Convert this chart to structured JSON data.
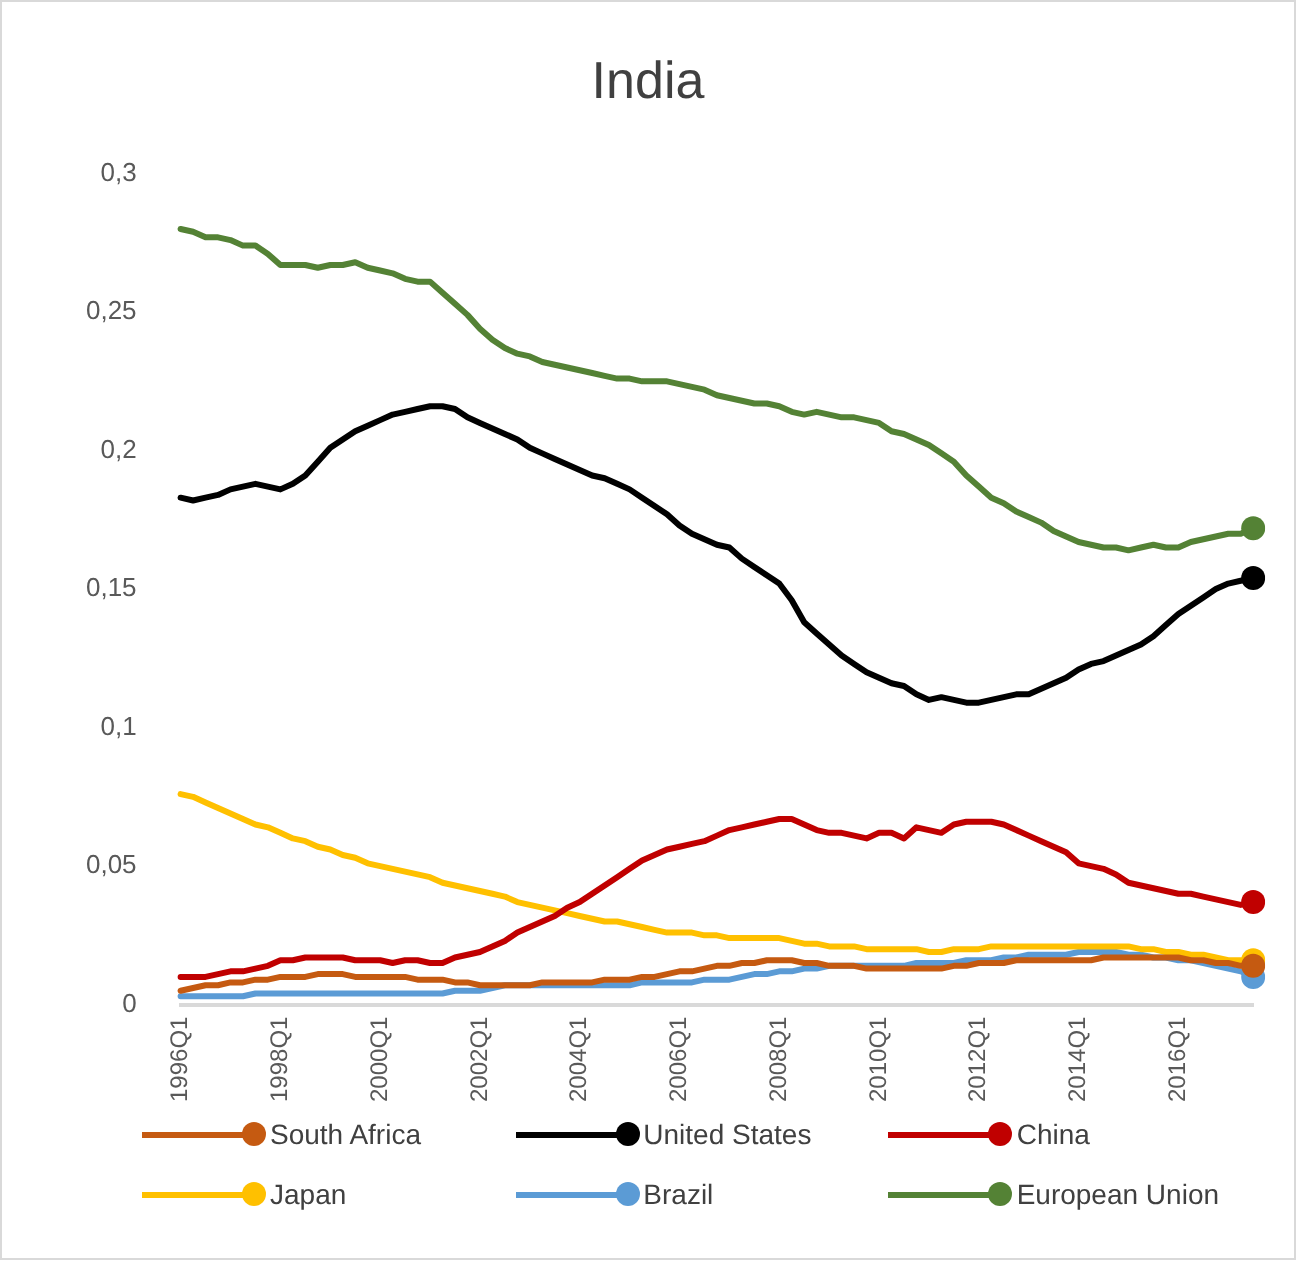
{
  "chart_data": {
    "type": "line",
    "title": "India",
    "categories": [
      "1996Q1",
      null,
      null,
      null,
      null,
      null,
      null,
      null,
      "1998Q1",
      null,
      null,
      null,
      null,
      null,
      null,
      null,
      "2000Q1",
      null,
      null,
      null,
      null,
      null,
      null,
      null,
      "2002Q1",
      null,
      null,
      null,
      null,
      null,
      null,
      null,
      "2004Q1",
      null,
      null,
      null,
      null,
      null,
      null,
      null,
      "2006Q1",
      null,
      null,
      null,
      null,
      null,
      null,
      null,
      "2008Q1",
      null,
      null,
      null,
      null,
      null,
      null,
      null,
      "2010Q1",
      null,
      null,
      null,
      null,
      null,
      null,
      null,
      "2012Q1",
      null,
      null,
      null,
      null,
      null,
      null,
      null,
      "2014Q1",
      null,
      null,
      null,
      null,
      null,
      null,
      null,
      "2016Q1",
      null,
      null,
      null,
      null,
      null,
      null
    ],
    "series": [
      {
        "name": "South Africa",
        "color": "#c55a11",
        "values": [
          0.005,
          0.006,
          0.007,
          0.007,
          0.008,
          0.008,
          0.009,
          0.009,
          0.01,
          0.01,
          0.01,
          0.011,
          0.011,
          0.011,
          0.01,
          0.01,
          0.01,
          0.01,
          0.01,
          0.009,
          0.009,
          0.009,
          0.008,
          0.008,
          0.007,
          0.007,
          0.007,
          0.007,
          0.007,
          0.008,
          0.008,
          0.008,
          0.008,
          0.008,
          0.009,
          0.009,
          0.009,
          0.01,
          0.01,
          0.011,
          0.012,
          0.012,
          0.013,
          0.014,
          0.014,
          0.015,
          0.015,
          0.016,
          0.016,
          0.016,
          0.015,
          0.015,
          0.014,
          0.014,
          0.014,
          0.013,
          0.013,
          0.013,
          0.013,
          0.013,
          0.013,
          0.013,
          0.014,
          0.014,
          0.015,
          0.015,
          0.015,
          0.016,
          0.016,
          0.016,
          0.016,
          0.016,
          0.016,
          0.016,
          0.017,
          0.017,
          0.017,
          0.017,
          0.017,
          0.017,
          0.017,
          0.016,
          0.016,
          0.015,
          0.015,
          0.014,
          0.014
        ]
      },
      {
        "name": "United States",
        "color": "#000000",
        "values": [
          0.183,
          0.182,
          0.183,
          0.184,
          0.186,
          0.187,
          0.188,
          0.187,
          0.186,
          0.188,
          0.191,
          0.196,
          0.201,
          0.204,
          0.207,
          0.209,
          0.211,
          0.213,
          0.214,
          0.215,
          0.216,
          0.216,
          0.215,
          0.212,
          0.21,
          0.208,
          0.206,
          0.204,
          0.201,
          0.199,
          0.197,
          0.195,
          0.193,
          0.191,
          0.19,
          0.188,
          0.186,
          0.183,
          0.18,
          0.177,
          0.173,
          0.17,
          0.168,
          0.166,
          0.165,
          0.161,
          0.158,
          0.155,
          0.152,
          0.146,
          0.138,
          0.134,
          0.13,
          0.126,
          0.123,
          0.12,
          0.118,
          0.116,
          0.115,
          0.112,
          0.11,
          0.111,
          0.11,
          0.109,
          0.109,
          0.11,
          0.111,
          0.112,
          0.112,
          0.114,
          0.116,
          0.118,
          0.121,
          0.123,
          0.124,
          0.126,
          0.128,
          0.13,
          0.133,
          0.137,
          0.141,
          0.144,
          0.147,
          0.15,
          0.152,
          0.153,
          0.154
        ]
      },
      {
        "name": "China",
        "color": "#c00000",
        "values": [
          0.01,
          0.01,
          0.01,
          0.011,
          0.012,
          0.012,
          0.013,
          0.014,
          0.016,
          0.016,
          0.017,
          0.017,
          0.017,
          0.017,
          0.016,
          0.016,
          0.016,
          0.015,
          0.016,
          0.016,
          0.015,
          0.015,
          0.017,
          0.018,
          0.019,
          0.021,
          0.023,
          0.026,
          0.028,
          0.03,
          0.032,
          0.035,
          0.037,
          0.04,
          0.043,
          0.046,
          0.049,
          0.052,
          0.054,
          0.056,
          0.057,
          0.058,
          0.059,
          0.061,
          0.063,
          0.064,
          0.065,
          0.066,
          0.067,
          0.067,
          0.065,
          0.063,
          0.062,
          0.062,
          0.061,
          0.06,
          0.062,
          0.062,
          0.06,
          0.064,
          0.063,
          0.062,
          0.065,
          0.066,
          0.066,
          0.066,
          0.065,
          0.063,
          0.061,
          0.059,
          0.057,
          0.055,
          0.051,
          0.05,
          0.049,
          0.047,
          0.044,
          0.043,
          0.042,
          0.041,
          0.04,
          0.04,
          0.039,
          0.038,
          0.037,
          0.036,
          0.037
        ]
      },
      {
        "name": "Japan",
        "color": "#ffc000",
        "values": [
          0.076,
          0.075,
          0.073,
          0.071,
          0.069,
          0.067,
          0.065,
          0.064,
          0.062,
          0.06,
          0.059,
          0.057,
          0.056,
          0.054,
          0.053,
          0.051,
          0.05,
          0.049,
          0.048,
          0.047,
          0.046,
          0.044,
          0.043,
          0.042,
          0.041,
          0.04,
          0.039,
          0.037,
          0.036,
          0.035,
          0.034,
          0.033,
          0.032,
          0.031,
          0.03,
          0.03,
          0.029,
          0.028,
          0.027,
          0.026,
          0.026,
          0.026,
          0.025,
          0.025,
          0.024,
          0.024,
          0.024,
          0.024,
          0.024,
          0.023,
          0.022,
          0.022,
          0.021,
          0.021,
          0.021,
          0.02,
          0.02,
          0.02,
          0.02,
          0.02,
          0.019,
          0.019,
          0.02,
          0.02,
          0.02,
          0.021,
          0.021,
          0.021,
          0.021,
          0.021,
          0.021,
          0.021,
          0.021,
          0.021,
          0.021,
          0.021,
          0.021,
          0.02,
          0.02,
          0.019,
          0.019,
          0.018,
          0.018,
          0.017,
          0.016,
          0.016,
          0.016
        ]
      },
      {
        "name": "Brazil",
        "color": "#5b9bd5",
        "values": [
          0.003,
          0.003,
          0.003,
          0.003,
          0.003,
          0.003,
          0.004,
          0.004,
          0.004,
          0.004,
          0.004,
          0.004,
          0.004,
          0.004,
          0.004,
          0.004,
          0.004,
          0.004,
          0.004,
          0.004,
          0.004,
          0.004,
          0.005,
          0.005,
          0.005,
          0.006,
          0.007,
          0.007,
          0.007,
          0.007,
          0.007,
          0.007,
          0.007,
          0.007,
          0.007,
          0.007,
          0.007,
          0.008,
          0.008,
          0.008,
          0.008,
          0.008,
          0.009,
          0.009,
          0.009,
          0.01,
          0.011,
          0.011,
          0.012,
          0.012,
          0.013,
          0.013,
          0.014,
          0.014,
          0.014,
          0.014,
          0.014,
          0.014,
          0.014,
          0.015,
          0.015,
          0.015,
          0.015,
          0.016,
          0.016,
          0.016,
          0.017,
          0.017,
          0.018,
          0.018,
          0.018,
          0.018,
          0.019,
          0.019,
          0.019,
          0.019,
          0.018,
          0.018,
          0.017,
          0.017,
          0.016,
          0.016,
          0.015,
          0.014,
          0.013,
          0.012,
          0.01
        ]
      },
      {
        "name": "European Union",
        "color": "#548235",
        "values": [
          0.28,
          0.279,
          0.277,
          0.277,
          0.276,
          0.274,
          0.274,
          0.271,
          0.267,
          0.267,
          0.267,
          0.266,
          0.267,
          0.267,
          0.268,
          0.266,
          0.265,
          0.264,
          0.262,
          0.261,
          0.261,
          0.257,
          0.253,
          0.249,
          0.244,
          0.24,
          0.237,
          0.235,
          0.234,
          0.232,
          0.231,
          0.23,
          0.229,
          0.228,
          0.227,
          0.226,
          0.226,
          0.225,
          0.225,
          0.225,
          0.224,
          0.223,
          0.222,
          0.22,
          0.219,
          0.218,
          0.217,
          0.217,
          0.216,
          0.214,
          0.213,
          0.214,
          0.213,
          0.212,
          0.212,
          0.211,
          0.21,
          0.207,
          0.206,
          0.204,
          0.202,
          0.199,
          0.196,
          0.191,
          0.187,
          0.183,
          0.181,
          0.178,
          0.176,
          0.174,
          0.171,
          0.169,
          0.167,
          0.166,
          0.165,
          0.165,
          0.164,
          0.165,
          0.166,
          0.165,
          0.165,
          0.167,
          0.168,
          0.169,
          0.17,
          0.17,
          0.172
        ]
      }
    ],
    "ylim": [
      0,
      0.3
    ],
    "yticks": [
      {
        "value": 0,
        "label": "0"
      },
      {
        "value": 0.05,
        "label": "0,05"
      },
      {
        "value": 0.1,
        "label": "0,1"
      },
      {
        "value": 0.15,
        "label": "0,15"
      },
      {
        "value": 0.2,
        "label": "0,2"
      },
      {
        "value": 0.25,
        "label": "0,25"
      },
      {
        "value": 0.3,
        "label": "0,3"
      }
    ],
    "grid": false,
    "legend": "bottom",
    "line_style": "solid"
  }
}
